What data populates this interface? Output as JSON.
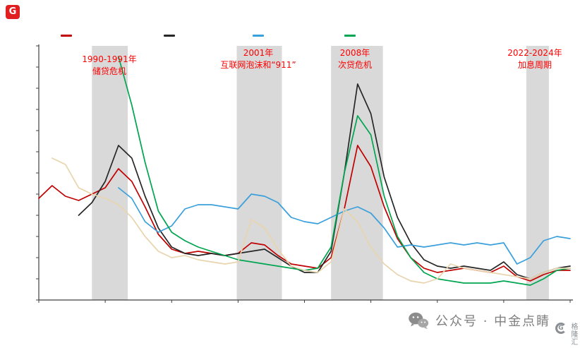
{
  "annotations": [
    {
      "line1": "1990-1991年",
      "line2": "储贷危机"
    },
    {
      "line1": "2001年",
      "line2": "互联网泡沫和“911”"
    },
    {
      "line1": "2008年",
      "line2": "次贷危机"
    },
    {
      "line1": "2022-2024年",
      "line2": "加息周期"
    }
  ],
  "footer": {
    "wechat_label": "公众号 · 中金点睛"
  },
  "watermark": {
    "brand": "格隆汇",
    "logo_letter": "G"
  },
  "header": {
    "logo_letter": "G"
  },
  "colors": {
    "band": "#d9d9d9",
    "axis": "#404040",
    "annotation": "#ff0000",
    "footer_gray": "#7f7f7f"
  },
  "chart_data": {
    "type": "line",
    "title": "",
    "xlabel": "",
    "ylabel": "",
    "x_range": [
      1985,
      2025
    ],
    "y_range": [
      0,
      12
    ],
    "y_tick_step": 1,
    "x_tick_step": 5,
    "tick_labels_visible": false,
    "grid": false,
    "legend_position": "top",
    "bands": [
      {
        "from": 1989.0,
        "to": 1991.7,
        "label": "1990-1991年储贷危机"
      },
      {
        "from": 1999.9,
        "to": 2003.3,
        "label": "2001年互联网泡沫和“911”"
      },
      {
        "from": 2007.0,
        "to": 2010.9,
        "label": "2008年次贷危机"
      },
      {
        "from": 2021.7,
        "to": 2023.4,
        "label": "2022-2024年加息周期"
      }
    ],
    "series": [
      {
        "name": "red-series",
        "color": "#c00000",
        "x": [
          1985,
          1986,
          1987,
          1988,
          1989,
          1990,
          1991,
          1992,
          1993,
          1994,
          1995,
          1996,
          1997,
          1998,
          1999,
          2000,
          2001,
          2002,
          2003,
          2004,
          2005,
          2006,
          2007,
          2008,
          2009,
          2010,
          2011,
          2012,
          2013,
          2014,
          2015,
          2016,
          2017,
          2018,
          2019,
          2020,
          2021,
          2022,
          2023,
          2024,
          2025
        ],
        "values": [
          4.8,
          5.4,
          4.9,
          4.7,
          5.0,
          5.3,
          6.2,
          5.6,
          4.4,
          3.1,
          2.4,
          2.2,
          2.3,
          2.2,
          2.1,
          2.2,
          2.7,
          2.6,
          2.1,
          1.7,
          1.6,
          1.5,
          2.0,
          4.3,
          7.3,
          6.3,
          4.4,
          2.9,
          2.0,
          1.5,
          1.3,
          1.4,
          1.5,
          1.4,
          1.3,
          1.6,
          1.1,
          0.9,
          1.2,
          1.4,
          1.4
        ]
      },
      {
        "name": "black-series",
        "color": "#262626",
        "x": [
          1988,
          1989,
          1990,
          1991,
          1992,
          1993,
          1994,
          1995,
          1996,
          1997,
          1998,
          1999,
          2000,
          2001,
          2002,
          2003,
          2004,
          2005,
          2006,
          2007,
          2008,
          2009,
          2010,
          2011,
          2012,
          2013,
          2014,
          2015,
          2016,
          2017,
          2018,
          2019,
          2020,
          2021,
          2022,
          2023,
          2024,
          2025
        ],
        "values": [
          4.0,
          4.6,
          5.6,
          7.3,
          6.7,
          4.9,
          3.4,
          2.5,
          2.2,
          2.1,
          2.2,
          2.1,
          2.2,
          2.3,
          2.4,
          2.0,
          1.6,
          1.3,
          1.3,
          2.3,
          6.0,
          10.2,
          8.8,
          5.8,
          3.9,
          2.7,
          1.9,
          1.6,
          1.5,
          1.6,
          1.5,
          1.4,
          1.8,
          1.2,
          1.0,
          1.3,
          1.5,
          1.6
        ]
      },
      {
        "name": "blue-series",
        "color": "#3aa0dc",
        "x": [
          1991,
          1992,
          1993,
          1994,
          1995,
          1996,
          1997,
          1998,
          1999,
          2000,
          2001,
          2002,
          2003,
          2004,
          2005,
          2006,
          2007,
          2008,
          2009,
          2010,
          2011,
          2012,
          2013,
          2014,
          2015,
          2016,
          2017,
          2018,
          2019,
          2020,
          2021,
          2022,
          2023,
          2024,
          2025
        ],
        "values": [
          5.3,
          4.8,
          3.7,
          3.2,
          3.5,
          4.3,
          4.5,
          4.5,
          4.4,
          4.3,
          5.0,
          4.9,
          4.6,
          3.9,
          3.7,
          3.6,
          3.9,
          4.2,
          4.4,
          4.1,
          3.4,
          2.5,
          2.6,
          2.5,
          2.6,
          2.7,
          2.6,
          2.7,
          2.6,
          2.7,
          1.7,
          2.0,
          2.8,
          3.0,
          2.9
        ]
      },
      {
        "name": "green-series",
        "color": "#00a550",
        "x": [
          1991,
          1992,
          1993,
          1994,
          1995,
          1996,
          1997,
          1998,
          1999,
          2000,
          2001,
          2002,
          2003,
          2004,
          2005,
          2006,
          2007,
          2008,
          2009,
          2010,
          2011,
          2012,
          2013,
          2014,
          2015,
          2016,
          2017,
          2018,
          2019,
          2020,
          2021,
          2022,
          2023,
          2024,
          2025
        ],
        "values": [
          11.5,
          9.2,
          6.5,
          4.2,
          3.2,
          2.8,
          2.5,
          2.3,
          2.1,
          1.9,
          1.8,
          1.7,
          1.6,
          1.5,
          1.4,
          1.5,
          2.5,
          6.0,
          8.7,
          7.8,
          4.9,
          3.0,
          2.0,
          1.3,
          1.0,
          0.9,
          0.8,
          0.8,
          0.8,
          0.9,
          0.8,
          0.7,
          1.0,
          1.4,
          1.5
        ]
      },
      {
        "name": "tan-series",
        "color": "#e8d5ae",
        "x": [
          1986,
          1987,
          1988,
          1989,
          1990,
          1991,
          1992,
          1993,
          1994,
          1995,
          1996,
          1997,
          1998,
          1999,
          2000,
          2001,
          2002,
          2003,
          2004,
          2005,
          2006,
          2007,
          2008,
          2009,
          2010,
          2011,
          2012,
          2013,
          2014,
          2015,
          2016,
          2017,
          2018,
          2019,
          2020,
          2021,
          2022,
          2023,
          2024,
          2025
        ],
        "values": [
          6.7,
          6.4,
          5.3,
          5.0,
          4.8,
          4.5,
          3.9,
          3.0,
          2.3,
          2.0,
          2.1,
          1.9,
          1.8,
          1.7,
          1.8,
          3.8,
          3.4,
          2.4,
          1.6,
          1.4,
          1.3,
          1.8,
          4.3,
          3.7,
          2.5,
          1.7,
          1.2,
          0.9,
          0.8,
          1.0,
          1.7,
          1.5,
          1.4,
          1.3,
          1.2,
          1.1,
          1.0,
          1.3,
          1.5,
          1.5
        ]
      }
    ]
  }
}
